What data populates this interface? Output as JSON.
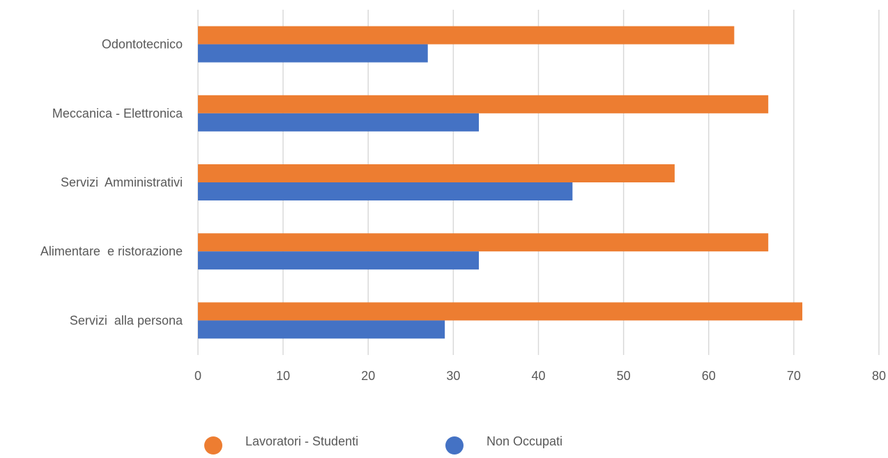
{
  "chart_data": {
    "type": "bar",
    "orientation": "horizontal",
    "categories": [
      "Odontotecnico",
      "Meccanica - Elettronica",
      "Servizi  Amministrativi",
      "Alimentare  e ristorazione",
      "Servizi  alla persona"
    ],
    "series": [
      {
        "name": "Lavoratori - Studenti",
        "color": "#ED7D31",
        "values": [
          63,
          67,
          56,
          67,
          71
        ]
      },
      {
        "name": "Non Occupati",
        "color": "#4472C4",
        "values": [
          27,
          33,
          44,
          33,
          29
        ]
      }
    ],
    "xlim": [
      0,
      80
    ],
    "xticks": [
      0,
      10,
      20,
      30,
      40,
      50,
      60,
      70,
      80
    ],
    "title": "",
    "xlabel": "",
    "ylabel": "",
    "grid": "vertical",
    "legend": "bottom"
  }
}
